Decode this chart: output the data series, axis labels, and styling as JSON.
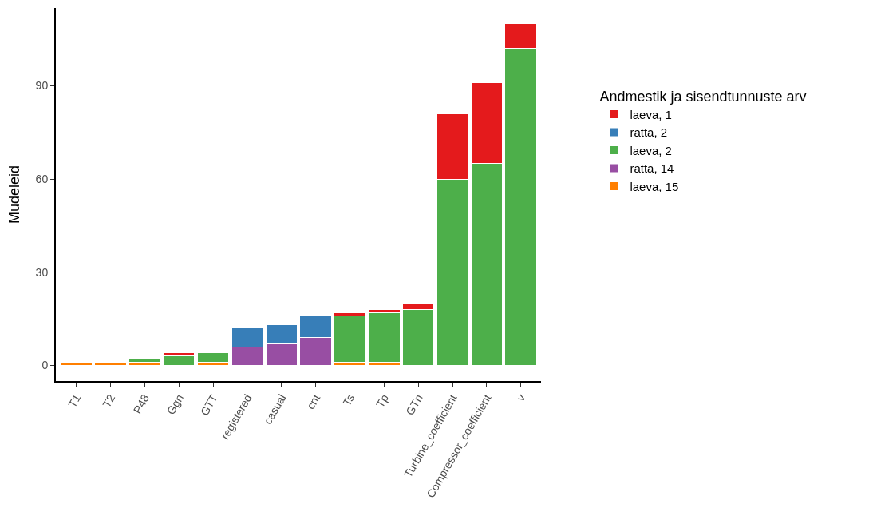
{
  "chart_data": {
    "type": "bar",
    "stacked": true,
    "ylabel": "Mudeleid",
    "legend_title": "Andmestik ja sisendtunnuste arv",
    "legend": "right",
    "categories": [
      "T1",
      "T2",
      "P48",
      "Ggn",
      "GTT",
      "registered",
      "casual",
      "cnt",
      "Ts",
      "Tp",
      "GTn",
      "Turbine_coefficient",
      "Compressor_coefficient",
      "v"
    ],
    "ylim": [
      -5,
      115
    ],
    "yticks": [
      0,
      30,
      60,
      90
    ],
    "series": [
      {
        "name": "laeva, 15",
        "color": "#ff7f00",
        "values": [
          1,
          1,
          1,
          null,
          1,
          null,
          null,
          null,
          1,
          1,
          null,
          null,
          null,
          null
        ]
      },
      {
        "name": "ratta, 14",
        "color": "#984ea3",
        "values": [
          null,
          null,
          null,
          null,
          null,
          6,
          7,
          9,
          null,
          null,
          null,
          null,
          null,
          null
        ]
      },
      {
        "name": "laeva, 2",
        "color": "#4daf4a",
        "values": [
          null,
          null,
          1,
          3,
          3,
          null,
          null,
          null,
          15,
          16,
          18,
          60,
          65,
          102
        ]
      },
      {
        "name": "ratta, 2",
        "color": "#377eb8",
        "values": [
          null,
          null,
          null,
          null,
          null,
          6,
          6,
          7,
          null,
          null,
          null,
          null,
          null,
          null
        ]
      },
      {
        "name": "laeva, 1",
        "color": "#e41a1c",
        "values": [
          null,
          null,
          null,
          1,
          null,
          null,
          null,
          null,
          1,
          1,
          2,
          21,
          26,
          8
        ]
      }
    ]
  }
}
